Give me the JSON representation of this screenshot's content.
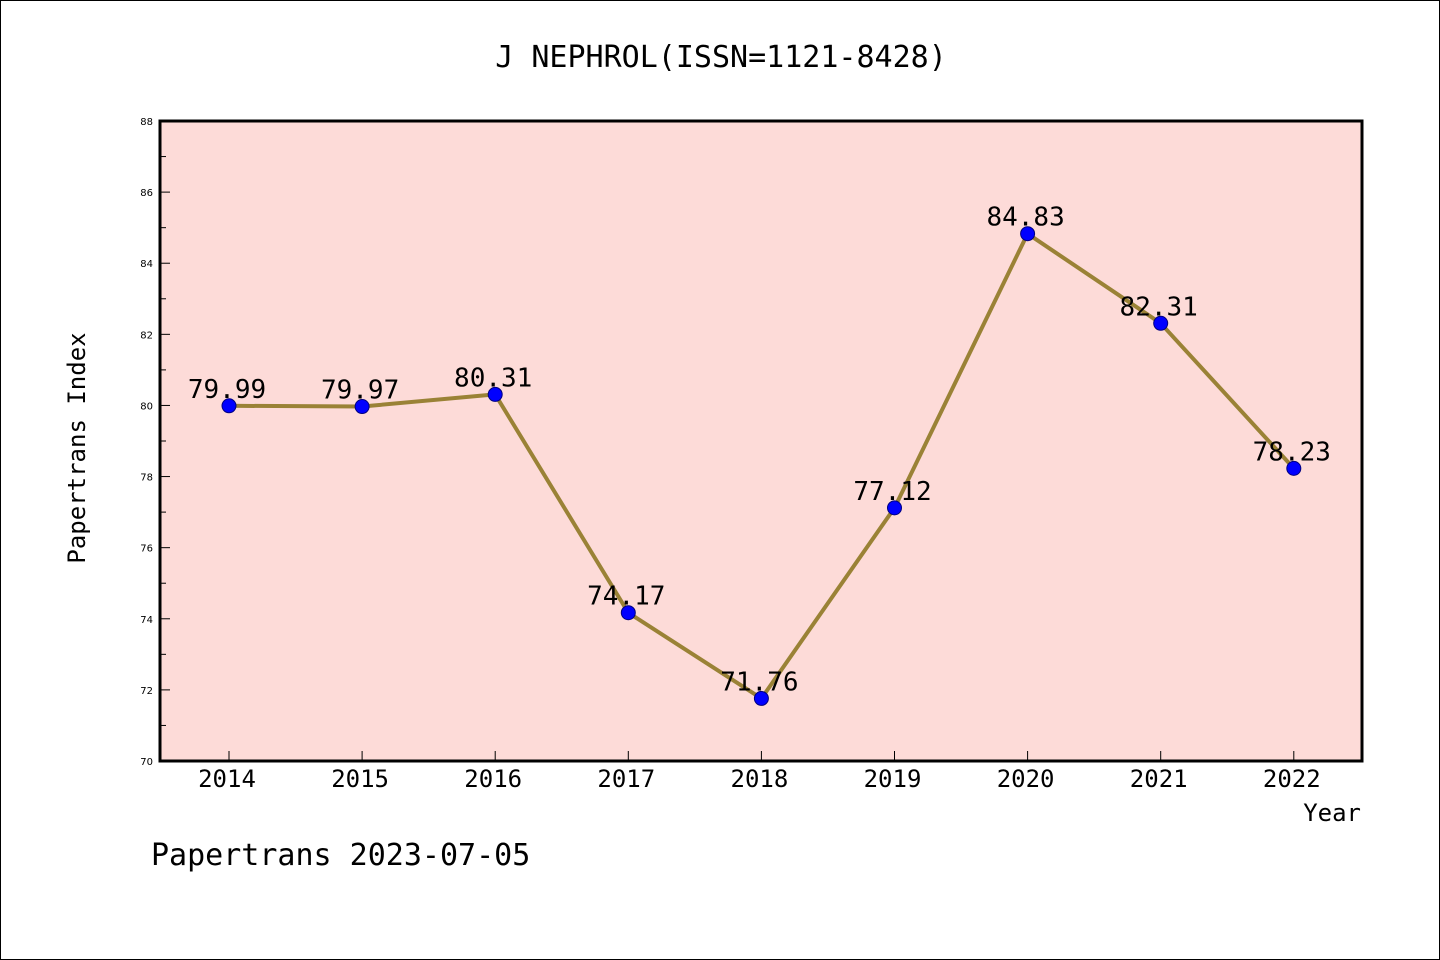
{
  "chart_data": {
    "type": "line",
    "title": "J NEPHROL(ISSN=1121-8428)",
    "xlabel": "Year",
    "ylabel": "Papertrans Index",
    "categories": [
      "2014",
      "2015",
      "2016",
      "2017",
      "2018",
      "2019",
      "2020",
      "2021",
      "2022"
    ],
    "series": [
      {
        "values": [
          79.99,
          79.97,
          80.31,
          74.17,
          71.76,
          77.12,
          84.83,
          82.31,
          78.23
        ],
        "labels": [
          "79.99",
          "79.97",
          "80.31",
          "74.17",
          "71.76",
          "77.12",
          "84.83",
          "82.31",
          "78.23"
        ]
      }
    ],
    "ylim": [
      70,
      88
    ],
    "yticks": [
      "70",
      "72",
      "74",
      "76",
      "78",
      "80",
      "82",
      "84",
      "86",
      "88"
    ],
    "grid": false,
    "footer": "Papertrans 2023-07-05",
    "colors": {
      "plot_background": "#fddbd8",
      "line": "#9a8236",
      "marker": "#0000ff",
      "marker_edge": "#000080"
    }
  }
}
